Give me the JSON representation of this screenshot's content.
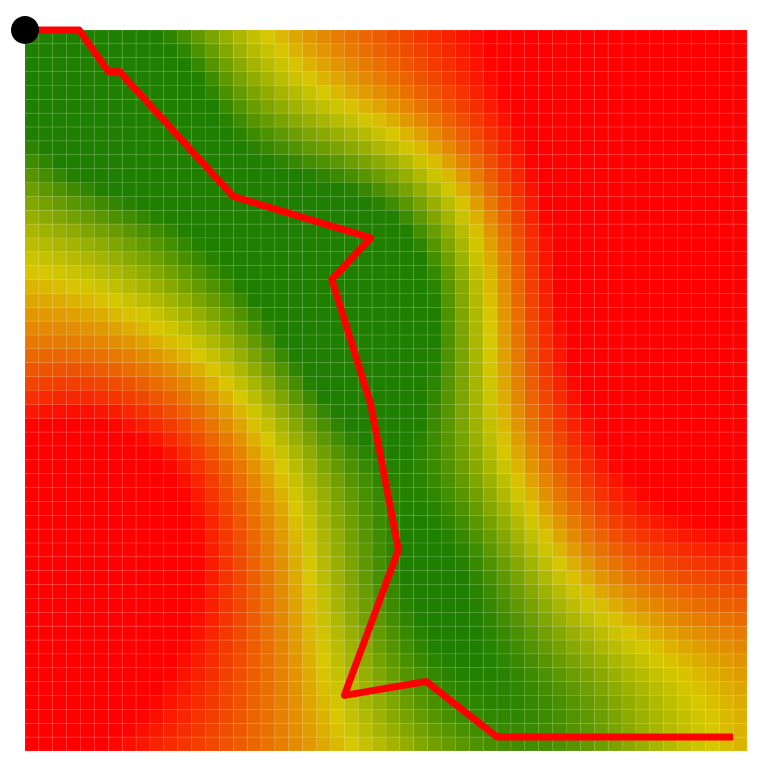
{
  "map": {
    "grid": {
      "rows": 52,
      "cols": 52,
      "color_scale": {
        "low": "#1f7f00",
        "mid": "#d7c800",
        "high": "#ff0000"
      },
      "cell_border_color": "#ffffff"
    },
    "path": {
      "color": "#ff0000",
      "waypoints": [
        {
          "col": 0.0,
          "row": 0.0
        },
        {
          "col": 3.9,
          "row": 0.0
        },
        {
          "col": 6.0,
          "row": 3.0
        },
        {
          "col": 6.8,
          "row": 3.0
        },
        {
          "col": 15.0,
          "row": 12.0
        },
        {
          "col": 24.9,
          "row": 15.0
        },
        {
          "col": 22.1,
          "row": 18.0
        },
        {
          "col": 24.9,
          "row": 27.0
        },
        {
          "col": 26.9,
          "row": 37.5
        },
        {
          "col": 23.0,
          "row": 48.0
        },
        {
          "col": 28.9,
          "row": 47.0
        },
        {
          "col": 34.0,
          "row": 51.0
        },
        {
          "col": 51.0,
          "row": 51.0
        }
      ]
    },
    "start_marker": {
      "color": "#000000",
      "col": 0.0,
      "row": 0.0
    }
  }
}
